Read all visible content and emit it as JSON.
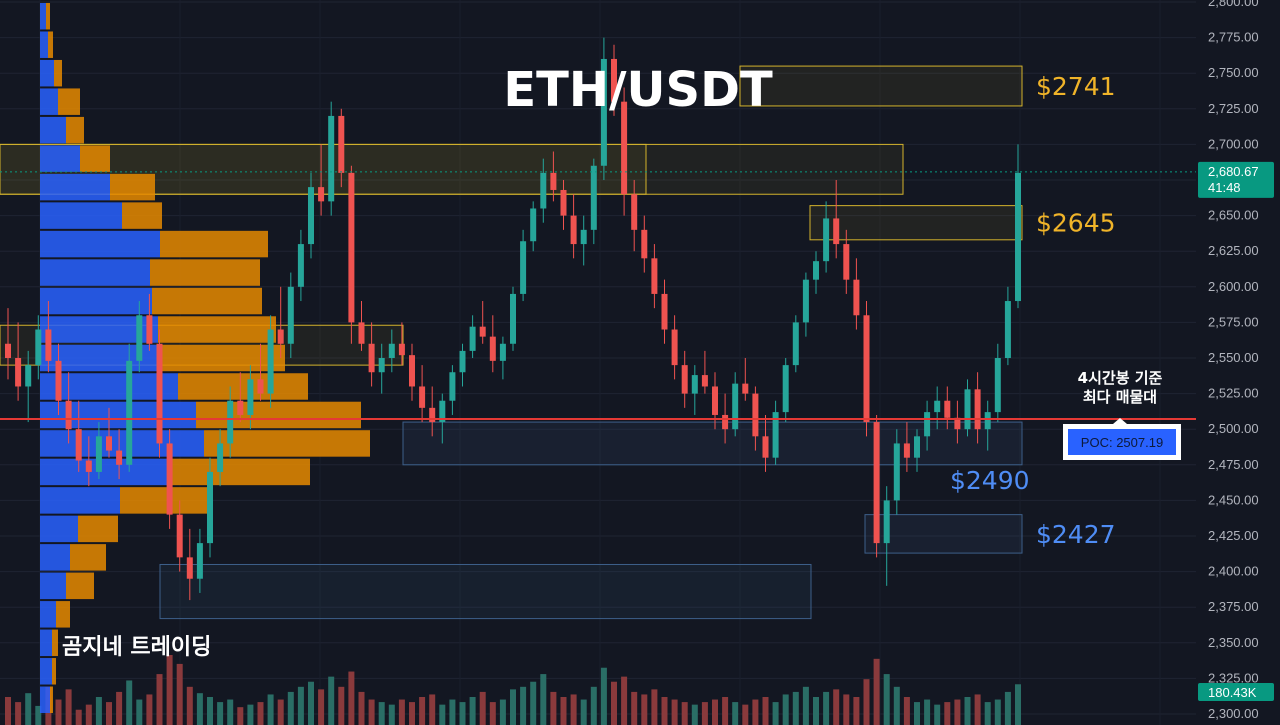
{
  "colors": {
    "background": "#131722",
    "up": "#26a69a",
    "down": "#ef5350",
    "volume_up": "#2a6e66",
    "volume_down": "#8a3a3c",
    "profile_buy": "#2962ff",
    "profile_sell": "#e68a00",
    "gold_zone": "#d4b32c",
    "blue_zone": "#3d5f8a",
    "poc_line": "#e53935",
    "price_tag": "#089981",
    "label_blue": "#4f8df5",
    "label_gold": "#f0b429"
  },
  "chart_data": {
    "type": "candlestick",
    "title": "ETH/USDT",
    "watermark": "곰지네 트레이딩",
    "y_axis": {
      "min": 2300,
      "max": 2800,
      "ticks": [
        "2,300.00",
        "2,325.00",
        "2,350.00",
        "2,375.00",
        "2,400.00",
        "2,425.00",
        "2,450.00",
        "2,475.00",
        "2,500.00",
        "2,525.00",
        "2,550.00",
        "2,575.00",
        "2,600.00",
        "2,625.00",
        "2,650.00",
        "2,675.00",
        "2,700.00",
        "2,725.00",
        "2,750.00",
        "2,775.00",
        "2,800.00"
      ],
      "tick_values": [
        2300,
        2325,
        2350,
        2375,
        2400,
        2425,
        2450,
        2475,
        2500,
        2525,
        2550,
        2575,
        2600,
        2625,
        2650,
        2675,
        2700,
        2725,
        2750,
        2775,
        2800
      ]
    },
    "current_price": {
      "label": "2,680.67",
      "countdown": "41:48",
      "value": 2680.67
    },
    "volume_tag": "180.43K",
    "levels": [
      {
        "label": "$2741",
        "low": 2727,
        "high": 2755,
        "color": "gold",
        "end": 1022
      },
      {
        "label": "$2645",
        "low": 2633,
        "high": 2657,
        "color": "gold",
        "end": 1022
      },
      {
        "label": "$2490",
        "low": 2475,
        "high": 2505,
        "color": "blue",
        "end": 1022
      },
      {
        "label": "$2427",
        "low": 2413,
        "high": 2440,
        "color": "blue",
        "end": 1022
      }
    ],
    "poc": {
      "value": 2507.19,
      "label": "POC: 2507.19",
      "note_line1": "4시간봉 기준",
      "note_line2": "최다 매물대"
    },
    "candles": [
      [
        2560,
        2585,
        2535,
        2550
      ],
      [
        2550,
        2575,
        2520,
        2530
      ],
      [
        2530,
        2555,
        2505,
        2545
      ],
      [
        2545,
        2580,
        2535,
        2570
      ],
      [
        2570,
        2590,
        2540,
        2548
      ],
      [
        2548,
        2560,
        2510,
        2520
      ],
      [
        2520,
        2540,
        2490,
        2500
      ],
      [
        2500,
        2520,
        2470,
        2478
      ],
      [
        2478,
        2495,
        2460,
        2470
      ],
      [
        2470,
        2505,
        2465,
        2495
      ],
      [
        2495,
        2515,
        2480,
        2485
      ],
      [
        2485,
        2500,
        2465,
        2475
      ],
      [
        2475,
        2560,
        2470,
        2548
      ],
      [
        2548,
        2590,
        2540,
        2580
      ],
      [
        2580,
        2595,
        2555,
        2560
      ],
      [
        2560,
        2570,
        2480,
        2490
      ],
      [
        2490,
        2500,
        2430,
        2440
      ],
      [
        2440,
        2450,
        2400,
        2410
      ],
      [
        2410,
        2430,
        2380,
        2395
      ],
      [
        2395,
        2430,
        2385,
        2420
      ],
      [
        2420,
        2480,
        2410,
        2470
      ],
      [
        2470,
        2500,
        2460,
        2490
      ],
      [
        2490,
        2530,
        2480,
        2520
      ],
      [
        2520,
        2540,
        2505,
        2510
      ],
      [
        2510,
        2545,
        2500,
        2535
      ],
      [
        2535,
        2560,
        2520,
        2525
      ],
      [
        2525,
        2580,
        2515,
        2570
      ],
      [
        2570,
        2600,
        2550,
        2560
      ],
      [
        2560,
        2610,
        2550,
        2600
      ],
      [
        2600,
        2640,
        2590,
        2630
      ],
      [
        2630,
        2680,
        2620,
        2670
      ],
      [
        2670,
        2700,
        2650,
        2660
      ],
      [
        2660,
        2730,
        2650,
        2720
      ],
      [
        2720,
        2725,
        2670,
        2680
      ],
      [
        2680,
        2685,
        2560,
        2575
      ],
      [
        2575,
        2590,
        2555,
        2560
      ],
      [
        2560,
        2575,
        2530,
        2540
      ],
      [
        2540,
        2560,
        2525,
        2550
      ],
      [
        2550,
        2570,
        2540,
        2560
      ],
      [
        2560,
        2575,
        2545,
        2552
      ],
      [
        2552,
        2560,
        2520,
        2530
      ],
      [
        2530,
        2545,
        2505,
        2515
      ],
      [
        2515,
        2530,
        2495,
        2505
      ],
      [
        2505,
        2525,
        2490,
        2520
      ],
      [
        2520,
        2545,
        2510,
        2540
      ],
      [
        2540,
        2560,
        2530,
        2555
      ],
      [
        2555,
        2580,
        2550,
        2572
      ],
      [
        2572,
        2590,
        2560,
        2565
      ],
      [
        2565,
        2580,
        2540,
        2548
      ],
      [
        2548,
        2565,
        2535,
        2560
      ],
      [
        2560,
        2600,
        2555,
        2595
      ],
      [
        2595,
        2640,
        2590,
        2632
      ],
      [
        2632,
        2660,
        2625,
        2655
      ],
      [
        2655,
        2690,
        2645,
        2680
      ],
      [
        2680,
        2695,
        2660,
        2668
      ],
      [
        2668,
        2675,
        2640,
        2650
      ],
      [
        2650,
        2665,
        2620,
        2630
      ],
      [
        2630,
        2650,
        2615,
        2640
      ],
      [
        2640,
        2690,
        2630,
        2685
      ],
      [
        2685,
        2775,
        2675,
        2760
      ],
      [
        2760,
        2770,
        2720,
        2730
      ],
      [
        2730,
        2740,
        2650,
        2665
      ],
      [
        2665,
        2675,
        2625,
        2640
      ],
      [
        2640,
        2650,
        2610,
        2620
      ],
      [
        2620,
        2630,
        2585,
        2595
      ],
      [
        2595,
        2605,
        2560,
        2570
      ],
      [
        2570,
        2580,
        2535,
        2545
      ],
      [
        2545,
        2555,
        2515,
        2525
      ],
      [
        2525,
        2545,
        2510,
        2538
      ],
      [
        2538,
        2555,
        2525,
        2530
      ],
      [
        2530,
        2540,
        2500,
        2510
      ],
      [
        2510,
        2525,
        2490,
        2500
      ],
      [
        2500,
        2540,
        2495,
        2532
      ],
      [
        2532,
        2550,
        2520,
        2525
      ],
      [
        2525,
        2530,
        2485,
        2495
      ],
      [
        2495,
        2510,
        2470,
        2480
      ],
      [
        2480,
        2520,
        2475,
        2512
      ],
      [
        2512,
        2550,
        2505,
        2545
      ],
      [
        2545,
        2580,
        2540,
        2575
      ],
      [
        2575,
        2610,
        2565,
        2605
      ],
      [
        2605,
        2625,
        2595,
        2618
      ],
      [
        2618,
        2660,
        2610,
        2648
      ],
      [
        2648,
        2675,
        2620,
        2630
      ],
      [
        2630,
        2640,
        2595,
        2605
      ],
      [
        2605,
        2620,
        2570,
        2580
      ],
      [
        2580,
        2590,
        2495,
        2505
      ],
      [
        2505,
        2510,
        2410,
        2420
      ],
      [
        2420,
        2460,
        2390,
        2450
      ],
      [
        2450,
        2500,
        2440,
        2490
      ],
      [
        2490,
        2505,
        2470,
        2480
      ],
      [
        2480,
        2500,
        2470,
        2495
      ],
      [
        2495,
        2520,
        2485,
        2512
      ],
      [
        2512,
        2530,
        2500,
        2520
      ],
      [
        2520,
        2530,
        2500,
        2508
      ],
      [
        2508,
        2520,
        2490,
        2500
      ],
      [
        2500,
        2535,
        2495,
        2528
      ],
      [
        2528,
        2540,
        2490,
        2500
      ],
      [
        2500,
        2520,
        2485,
        2512
      ],
      [
        2512,
        2560,
        2505,
        2550
      ],
      [
        2550,
        2600,
        2545,
        2590
      ],
      [
        2590,
        2700,
        2585,
        2680
      ]
    ],
    "volumes": [
      22,
      18,
      25,
      15,
      30,
      20,
      28,
      12,
      16,
      22,
      18,
      26,
      35,
      20,
      24,
      40,
      55,
      48,
      30,
      25,
      22,
      18,
      20,
      14,
      16,
      18,
      24,
      20,
      26,
      30,
      34,
      28,
      38,
      30,
      42,
      26,
      20,
      18,
      16,
      20,
      18,
      22,
      24,
      16,
      20,
      18,
      22,
      26,
      18,
      20,
      28,
      30,
      34,
      40,
      26,
      22,
      24,
      20,
      30,
      45,
      34,
      38,
      26,
      24,
      28,
      22,
      20,
      18,
      16,
      18,
      20,
      22,
      18,
      16,
      20,
      22,
      18,
      24,
      26,
      30,
      22,
      26,
      28,
      24,
      22,
      36,
      52,
      40,
      30,
      22,
      18,
      20,
      16,
      18,
      20,
      22,
      24,
      18,
      20,
      26,
      32
    ],
    "volume_profile": [
      {
        "low": 2780,
        "high": 2800,
        "buy": 6,
        "sell": 4
      },
      {
        "low": 2760,
        "high": 2780,
        "buy": 8,
        "sell": 5
      },
      {
        "low": 2740,
        "high": 2760,
        "buy": 14,
        "sell": 8
      },
      {
        "low": 2720,
        "high": 2740,
        "buy": 18,
        "sell": 22
      },
      {
        "low": 2700,
        "high": 2720,
        "buy": 26,
        "sell": 18
      },
      {
        "low": 2680,
        "high": 2700,
        "buy": 40,
        "sell": 30
      },
      {
        "low": 2660,
        "high": 2680,
        "buy": 70,
        "sell": 45
      },
      {
        "low": 2640,
        "high": 2660,
        "buy": 82,
        "sell": 40
      },
      {
        "low": 2620,
        "high": 2640,
        "buy": 120,
        "sell": 108
      },
      {
        "low": 2600,
        "high": 2620,
        "buy": 110,
        "sell": 110
      },
      {
        "low": 2580,
        "high": 2600,
        "buy": 112,
        "sell": 110
      },
      {
        "low": 2560,
        "high": 2580,
        "buy": 118,
        "sell": 118
      },
      {
        "low": 2540,
        "high": 2560,
        "buy": 120,
        "sell": 125
      },
      {
        "low": 2520,
        "high": 2540,
        "buy": 138,
        "sell": 130
      },
      {
        "low": 2500,
        "high": 2520,
        "buy": 156,
        "sell": 165
      },
      {
        "low": 2480,
        "high": 2500,
        "buy": 164,
        "sell": 166
      },
      {
        "low": 2460,
        "high": 2480,
        "buy": 130,
        "sell": 140
      },
      {
        "low": 2440,
        "high": 2460,
        "buy": 80,
        "sell": 92
      },
      {
        "low": 2420,
        "high": 2440,
        "buy": 38,
        "sell": 40
      },
      {
        "low": 2400,
        "high": 2420,
        "buy": 30,
        "sell": 36
      },
      {
        "low": 2380,
        "high": 2400,
        "buy": 26,
        "sell": 28
      },
      {
        "low": 2360,
        "high": 2380,
        "buy": 16,
        "sell": 14
      },
      {
        "low": 2340,
        "high": 2360,
        "buy": 12,
        "sell": 6
      },
      {
        "low": 2320,
        "high": 2340,
        "buy": 12,
        "sell": 4
      },
      {
        "low": 2300,
        "high": 2320,
        "buy": 10,
        "sell": 3
      }
    ]
  }
}
